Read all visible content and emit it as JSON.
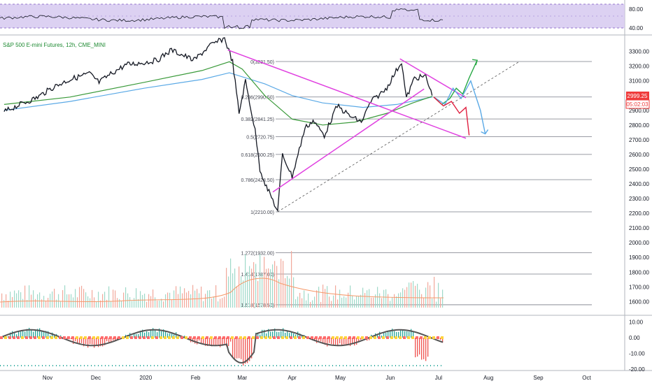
{
  "chart_data": {
    "type": "line",
    "legend": "S&P 500 E-mini Futures, 12h, CME_MINI",
    "current_price": "2999.25",
    "countdown": "05:02:03",
    "x_ticks": [
      "Nov",
      "Dec",
      "2020",
      "Feb",
      "Mar",
      "Apr",
      "May",
      "Jun",
      "Jul",
      "Aug",
      "Sep",
      "Oct"
    ],
    "y_ticks": [
      "3300.00",
      "3200.00",
      "3100.00",
      "3000.00",
      "2900.00",
      "2800.00",
      "2700.00",
      "2600.00",
      "2500.00",
      "2400.00",
      "2300.00",
      "2200.00",
      "2100.00",
      "2000.00",
      "1900.00",
      "1800.00",
      "1700.00",
      "1600.00"
    ],
    "ylim": [
      1560,
      3380
    ],
    "fib_levels": [
      {
        "label": "0(3231.50)",
        "value": 3231.5
      },
      {
        "label": "0.236(2990.50)",
        "value": 2990.5
      },
      {
        "label": "0.382(2841.25)",
        "value": 2841.25
      },
      {
        "label": "0.5(2720.75)",
        "value": 2720.75
      },
      {
        "label": "0.618(2600.25)",
        "value": 2600.25
      },
      {
        "label": "0.786(2428.50)",
        "value": 2428.5
      },
      {
        "label": "1(2210.00)",
        "value": 2210.0
      },
      {
        "label": "1.272(1932.00)",
        "value": 1932.0
      },
      {
        "label": "1.414(1787.00)",
        "value": 1787.0
      },
      {
        "label": "1.618(1578.50)",
        "value": 1578.5
      }
    ],
    "price_series": [
      [
        "2019-10-05",
        2890
      ],
      [
        "2019-10-15",
        2940
      ],
      [
        "2019-10-25",
        2985
      ],
      [
        "2019-11-05",
        3060
      ],
      [
        "2019-11-15",
        3110
      ],
      [
        "2019-11-27",
        3150
      ],
      [
        "2019-12-03",
        3090
      ],
      [
        "2019-12-12",
        3160
      ],
      [
        "2019-12-20",
        3210
      ],
      [
        "2019-12-31",
        3225
      ],
      [
        "2020-01-08",
        3240
      ],
      [
        "2020-01-17",
        3310
      ],
      [
        "2020-01-31",
        3240
      ],
      [
        "2020-02-10",
        3340
      ],
      [
        "2020-02-19",
        3390
      ],
      [
        "2020-02-24",
        3230
      ],
      [
        "2020-02-28",
        2880
      ],
      [
        "2020-03-03",
        3100
      ],
      [
        "2020-03-09",
        2760
      ],
      [
        "2020-03-12",
        2500
      ],
      [
        "2020-03-16",
        2380
      ],
      [
        "2020-03-20",
        2290
      ],
      [
        "2020-03-23",
        2210
      ],
      [
        "2020-03-26",
        2600
      ],
      [
        "2020-04-01",
        2450
      ],
      [
        "2020-04-09",
        2780
      ],
      [
        "2020-04-14",
        2830
      ],
      [
        "2020-04-21",
        2730
      ],
      [
        "2020-04-29",
        2930
      ],
      [
        "2020-05-07",
        2860
      ],
      [
        "2020-05-14",
        2820
      ],
      [
        "2020-05-20",
        2960
      ],
      [
        "2020-05-29",
        3040
      ],
      [
        "2020-06-08",
        3231
      ],
      [
        "2020-06-11",
        2980
      ],
      [
        "2020-06-16",
        3120
      ],
      [
        "2020-06-23",
        3130
      ],
      [
        "2020-06-27",
        3000
      ]
    ],
    "ma_green": [
      [
        "2019-10-05",
        2940
      ],
      [
        "2019-11-15",
        2990
      ],
      [
        "2019-12-31",
        3090
      ],
      [
        "2020-02-05",
        3170
      ],
      [
        "2020-02-22",
        3230
      ],
      [
        "2020-03-01",
        3180
      ],
      [
        "2020-03-15",
        3000
      ],
      [
        "2020-04-01",
        2840
      ],
      [
        "2020-04-20",
        2800
      ],
      [
        "2020-05-10",
        2820
      ],
      [
        "2020-05-30",
        2880
      ],
      [
        "2020-06-15",
        2950
      ],
      [
        "2020-06-27",
        2995
      ]
    ],
    "ma_blue": [
      [
        "2019-10-05",
        2900
      ],
      [
        "2019-11-15",
        2960
      ],
      [
        "2019-12-31",
        3050
      ],
      [
        "2020-02-05",
        3110
      ],
      [
        "2020-02-22",
        3155
      ],
      [
        "2020-03-15",
        3080
      ],
      [
        "2020-04-01",
        3000
      ],
      [
        "2020-04-20",
        2950
      ],
      [
        "2020-05-15",
        2920
      ],
      [
        "2020-06-05",
        2940
      ],
      [
        "2020-06-27",
        2990
      ]
    ],
    "trendlines": [
      {
        "name": "upper-channel",
        "color": "#e040e0",
        "points": [
          [
            "2020-02-21",
            3310
          ],
          [
            "2020-07-18",
            2710
          ]
        ]
      },
      {
        "name": "lower-channel",
        "color": "#e040e0",
        "points": [
          [
            "2020-03-20",
            2345
          ],
          [
            "2020-06-22",
            3045
          ]
        ]
      },
      {
        "name": "wedge-top",
        "color": "#e040e0",
        "points": [
          [
            "2020-06-07",
            3250
          ],
          [
            "2020-07-18",
            2985
          ]
        ]
      },
      {
        "name": "dashed-support",
        "color": "#555555",
        "points": [
          [
            "2020-03-23",
            2210
          ],
          [
            "2020-08-20",
            3230
          ]
        ]
      }
    ],
    "projections": [
      {
        "name": "green-path",
        "color": "#27a844",
        "points": [
          [
            "2020-06-28",
            2990
          ],
          [
            "2020-07-03",
            2940
          ],
          [
            "2020-07-08",
            2980
          ],
          [
            "2020-07-12",
            3050
          ],
          [
            "2020-07-16",
            3010
          ],
          [
            "2020-07-20",
            3120
          ],
          [
            "2020-07-25",
            3240
          ]
        ]
      },
      {
        "name": "blue-path",
        "color": "#5aa9e6",
        "points": [
          [
            "2020-06-28",
            2990
          ],
          [
            "2020-07-05",
            2940
          ],
          [
            "2020-07-10",
            3050
          ],
          [
            "2020-07-15",
            2980
          ],
          [
            "2020-07-21",
            3100
          ],
          [
            "2020-07-27",
            2900
          ],
          [
            "2020-07-30",
            2740
          ]
        ]
      },
      {
        "name": "red-path",
        "color": "#e02040",
        "points": [
          [
            "2020-06-28",
            2990
          ],
          [
            "2020-07-04",
            2930
          ],
          [
            "2020-07-09",
            2960
          ],
          [
            "2020-07-14",
            2880
          ],
          [
            "2020-07-18",
            2920
          ],
          [
            "2020-07-20",
            2730
          ]
        ]
      }
    ],
    "rsi": {
      "y_ticks": [
        "80.00",
        "40.00"
      ],
      "ylim": [
        30,
        90
      ]
    },
    "macd": {
      "y_ticks": [
        "10.00",
        "0.00",
        "-10.00",
        "-20.00"
      ],
      "ylim": [
        -22,
        12
      ]
    }
  }
}
